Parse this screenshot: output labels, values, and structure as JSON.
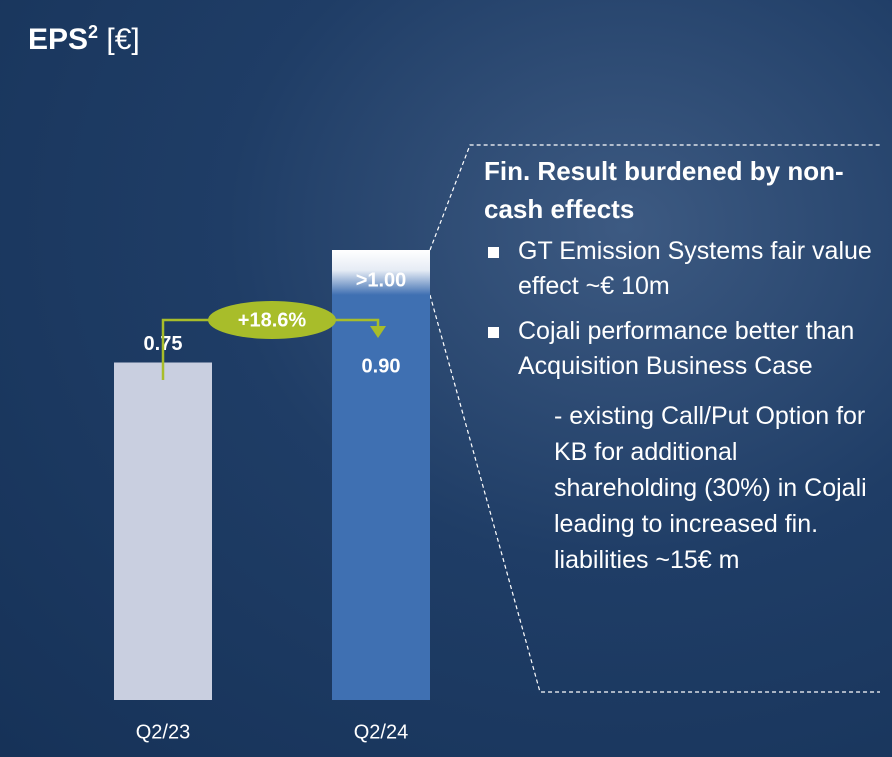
{
  "chart_data": {
    "type": "bar",
    "title": "EPS",
    "title_superscript": "2",
    "title_unit": "[€]",
    "categories": [
      "Q2/23",
      "Q2/24"
    ],
    "values": [
      0.75,
      0.9
    ],
    "value_labels": [
      "0.75",
      "0.90"
    ],
    "colors": [
      "#c9cfe0",
      "#3f70b2"
    ],
    "target": {
      "value": 1.0,
      "label": ">1.00"
    },
    "growth_label": "+18.6%",
    "growth_color": "#a8bd2a"
  },
  "panel": {
    "heading": "Fin. Result burdened by non-cash effects",
    "bullets": [
      "GT Emission Systems fair value effect ~€ 10m",
      "Cojali performance better than Acquisition Business Case"
    ],
    "sub_note": "- existing Call/Put Option for KB for additional shareholding (30%) in Cojali leading to increased fin. liabilities ~15€ m"
  }
}
